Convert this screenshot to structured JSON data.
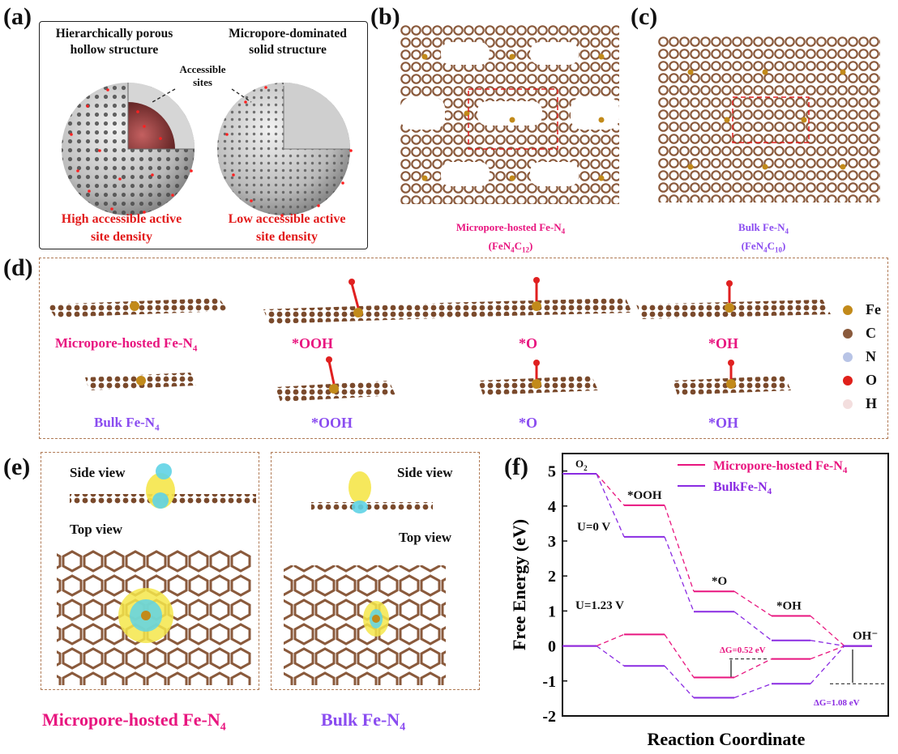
{
  "panels": {
    "a": {
      "label": "(a)",
      "left_title_1": "Hierarchically porous",
      "left_title_2": "hollow structure",
      "right_title_1": "Micropore-dominated",
      "right_title_2": "solid structure",
      "accessible_1": "Accessible",
      "accessible_2": "sites",
      "left_caption_1": "High accessible active",
      "left_caption_2": "site density",
      "right_caption_1": "Low accessible active",
      "right_caption_2": "site density"
    },
    "b": {
      "label": "(b)",
      "caption_1": "Micropore-hosted Fe-N",
      "caption_sub": "4",
      "caption_2": "(FeN",
      "caption_2b": "C",
      "caption_2c": "12",
      "caption_2d": ")"
    },
    "c": {
      "label": "(c)",
      "caption_1": "Bulk Fe-N",
      "caption_sub": "4",
      "caption_2": "(FeN",
      "caption_2b": "C",
      "caption_2c": "10",
      "caption_2d": ")"
    },
    "d": {
      "label": "(d)",
      "row1_label": "Micropore-hosted Fe-N",
      "row1_sub": "4",
      "row2_label": "Bulk Fe-N",
      "row2_sub": "4",
      "ooh": "*OOH",
      "o": "*O",
      "oh": "*OH",
      "legend": [
        {
          "symbol": "Fe",
          "color": "#c28a1a"
        },
        {
          "symbol": "C",
          "color": "#8a5a3c"
        },
        {
          "symbol": "N",
          "color": "#b8c4e6"
        },
        {
          "symbol": "O",
          "color": "#e0201a"
        },
        {
          "symbol": "H",
          "color": "#f3dede"
        }
      ]
    },
    "e": {
      "label": "(e)",
      "side_view": "Side view",
      "top_view": "Top view",
      "caption_left": "Micropore-hosted Fe-N",
      "caption_left_sub": "4",
      "caption_right": "Bulk Fe-N",
      "caption_right_sub": "4"
    },
    "f": {
      "label": "(f)"
    }
  },
  "chart_data": {
    "type": "line",
    "xlabel": "Reaction Coordinate",
    "ylabel": "Free Energy (eV)",
    "ylim": [
      -2,
      5.5
    ],
    "yticks": [
      -2,
      -1,
      0,
      1,
      2,
      3,
      4,
      5
    ],
    "categories": [
      "O2",
      "*OOH",
      "*O",
      "*OH",
      "OH⁻"
    ],
    "series": [
      {
        "name": "Micropore-hosted Fe-N4",
        "legend_text": "Micropore-hosted Fe-N",
        "legend_sub": "4",
        "color": "#e8157f",
        "u0": [
          4.92,
          4.02,
          1.56,
          0.86,
          0.0
        ],
        "u123": [
          0.0,
          0.33,
          -0.9,
          -0.37,
          0.0
        ]
      },
      {
        "name": "BulkFe-N4",
        "legend_text": "BulkFe-N",
        "legend_sub": "4",
        "color": "#8a2be2",
        "u0": [
          4.92,
          3.12,
          0.98,
          0.16,
          0.0
        ],
        "u123": [
          0.0,
          -0.57,
          -1.48,
          -1.08,
          0.0
        ]
      }
    ],
    "annotations": {
      "u0": "U=0 V",
      "u123": "U=1.23 V",
      "o2": "O",
      "o2_sub": "2",
      "ooh": "*OOH",
      "o": "*O",
      "oh": "*OH",
      "ohm": "OH⁻",
      "dg1": "ΔG=0.52 eV",
      "dg2": "ΔG=1.08 eV"
    }
  }
}
